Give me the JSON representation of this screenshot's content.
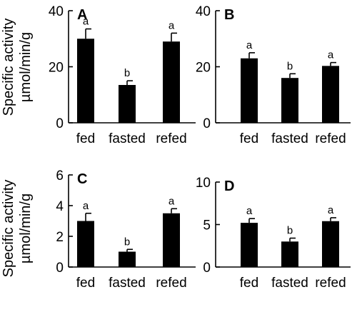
{
  "y_axis_label": {
    "line1": "Specific activity",
    "line2": "µmol/min/g"
  },
  "chart_data": [
    {
      "type": "bar",
      "panel": "A",
      "categories": [
        "fed",
        "fasted",
        "refed"
      ],
      "values": [
        30,
        13.5,
        29
      ],
      "errors": [
        3.5,
        1.5,
        3
      ],
      "significance": [
        "a",
        "b",
        "a"
      ],
      "ylim": [
        0,
        40
      ],
      "yticks": [
        0,
        20,
        40
      ],
      "ylabel": "Specific activity µmol/min/g",
      "bar_color": "#000000"
    },
    {
      "type": "bar",
      "panel": "B",
      "categories": [
        "fed",
        "fasted",
        "refed"
      ],
      "values": [
        23,
        16,
        20.3
      ],
      "errors": [
        2,
        1.5,
        1.2
      ],
      "significance": [
        "a",
        "b",
        "a"
      ],
      "ylim": [
        0,
        40
      ],
      "yticks": [
        0,
        20,
        40
      ],
      "ylabel": "",
      "bar_color": "#000000"
    },
    {
      "type": "bar",
      "panel": "C",
      "categories": [
        "fed",
        "fasted",
        "refed"
      ],
      "values": [
        3,
        1,
        3.5
      ],
      "errors": [
        0.5,
        0.15,
        0.3
      ],
      "significance": [
        "a",
        "b",
        "a"
      ],
      "ylim": [
        0,
        6
      ],
      "yticks": [
        0,
        2,
        4,
        6
      ],
      "ylabel": "Specific activity µmol/min/g",
      "bar_color": "#000000"
    },
    {
      "type": "bar",
      "panel": "D",
      "categories": [
        "fed",
        "fasted",
        "refed"
      ],
      "values": [
        5.2,
        3,
        5.4
      ],
      "errors": [
        0.5,
        0.4,
        0.4
      ],
      "significance": [
        "a",
        "b",
        "a"
      ],
      "ylim": [
        0,
        10
      ],
      "yticks": [
        0,
        5,
        10
      ],
      "ylabel": "",
      "bar_color": "#000000"
    }
  ]
}
